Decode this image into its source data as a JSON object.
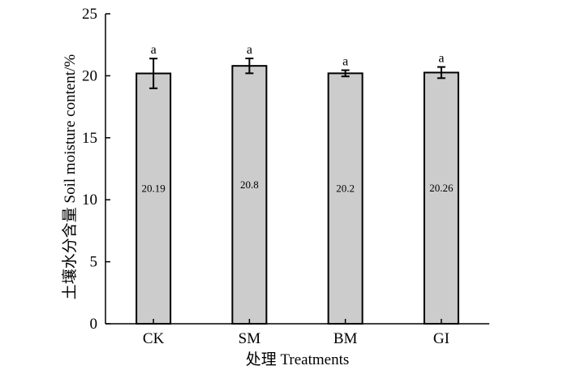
{
  "chart_data": {
    "type": "bar",
    "title": "",
    "xlabel": "处理 Treatments",
    "ylabel": "土壤水分含量 Soil moisture content/%",
    "ylim": [
      0,
      25
    ],
    "yticks": [
      0,
      5,
      10,
      15,
      20,
      25
    ],
    "categories": [
      "CK",
      "SM",
      "BM",
      "GI"
    ],
    "values": [
      20.19,
      20.8,
      20.2,
      20.26
    ],
    "errors": [
      1.2,
      0.6,
      0.25,
      0.45
    ],
    "value_labels": [
      "20.19",
      "20.8",
      "20.2",
      "20.26"
    ],
    "significance": [
      "a",
      "a",
      "a",
      "a"
    ],
    "bar_color": "#cccccc",
    "edge_color": "#000000",
    "grid": false
  }
}
